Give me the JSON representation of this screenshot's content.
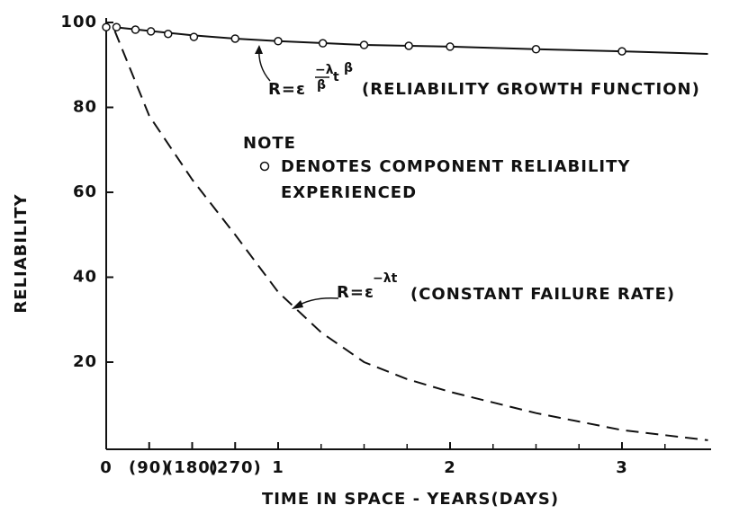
{
  "chart_data": {
    "type": "line",
    "y_label": "RELIABILITY",
    "x_label": "TIME IN SPACE - YEARS(DAYS)",
    "xlim": [
      0,
      3.5
    ],
    "ylim": [
      0,
      100
    ],
    "xticks": [
      0,
      {
        "value": 0.25,
        "label": "(90)"
      },
      {
        "value": 0.5,
        "label": "(180)"
      },
      {
        "value": 0.75,
        "label": "(270)"
      },
      1,
      2,
      3
    ],
    "xminorticks": [
      1.25,
      1.5,
      1.75,
      2.25,
      2.5,
      2.75,
      3.25
    ],
    "yticks": [
      20,
      40,
      60,
      80,
      100
    ],
    "color": "#111111",
    "growth_curve": {
      "x": [
        0.05,
        0.25,
        0.5,
        0.75,
        1,
        1.5,
        2,
        2.5,
        3,
        3.5
      ],
      "values": [
        98.9,
        98.0,
        97.0,
        96.2,
        95.6,
        94.7,
        94.3,
        93.7,
        93.2,
        92.6
      ]
    },
    "constant_curve": {
      "x": [
        0.05,
        0.25,
        0.5,
        0.75,
        1,
        1.25,
        1.5,
        1.75,
        2,
        2.5,
        3,
        3.5
      ],
      "values": [
        98,
        78,
        63,
        50,
        36.5,
        27,
        20,
        16,
        13,
        8,
        4,
        1.6
      ]
    },
    "observed": {
      "x": [
        0,
        0.06,
        0.17,
        0.26,
        0.36,
        0.51,
        0.75,
        1.0,
        1.26,
        1.5,
        1.76,
        2.0,
        2.5,
        3.0
      ],
      "values": [
        98.9,
        98.9,
        98.3,
        97.9,
        97.3,
        96.6,
        96.2,
        95.6,
        95.1,
        94.7,
        94.5,
        94.3,
        93.7,
        93.2
      ]
    },
    "growth_formula": {
      "base": "R=ε",
      "numerator": "−λ",
      "denominator": "β",
      "t": "t",
      "power": "β",
      "label": "(RELIABILITY GROWTH FUNCTION)"
    },
    "constant_formula": {
      "base": "R=ε",
      "exponent": "−λt",
      "label": "(CONSTANT FAILURE RATE)"
    },
    "note": {
      "title": "NOTE",
      "line1": "DENOTES COMPONENT RELIABILITY",
      "line2": "EXPERIENCED"
    }
  }
}
